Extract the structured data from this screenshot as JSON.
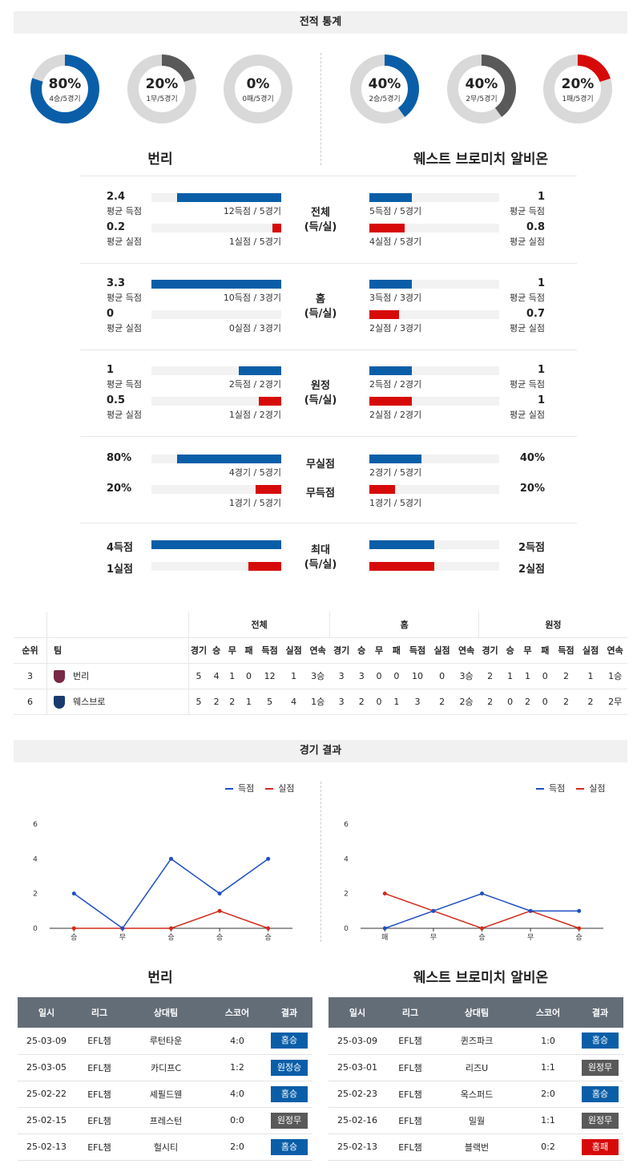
{
  "stats_header": "전적 통계",
  "colors": {
    "blue": "#0a5ea8",
    "red": "#d70a0a",
    "gray": "#595959"
  },
  "donuts": [
    {
      "pct": "80%",
      "sub": "4승/5경기",
      "value": 0.8,
      "color": "#0a5ea8"
    },
    {
      "pct": "20%",
      "sub": "1무/5경기",
      "value": 0.2,
      "color": "#595959"
    },
    {
      "pct": "0%",
      "sub": "0패/5경기",
      "value": 0.0,
      "color": "#d70a0a"
    },
    {
      "pct": "40%",
      "sub": "2승/5경기",
      "value": 0.4,
      "color": "#0a5ea8"
    },
    {
      "pct": "40%",
      "sub": "2무/5경기",
      "value": 0.4,
      "color": "#595959"
    },
    {
      "pct": "20%",
      "sub": "1패/5경기",
      "value": 0.2,
      "color": "#d70a0a"
    }
  ],
  "home_team": "번리",
  "away_team": "웨스트 브로미치 알비온",
  "stat_groups": [
    {
      "cat": "전체\n(득/실)",
      "left": [
        {
          "num": "2.4",
          "lbl": "평균 득점",
          "cap": "12득점 / 5경기",
          "frac": 0.8,
          "color": "blue"
        },
        {
          "num": "0.2",
          "lbl": "평균 실점",
          "cap": "1실점 / 5경기",
          "frac": 0.07,
          "color": "red"
        }
      ],
      "right": [
        {
          "num": "1",
          "lbl": "평균 득점",
          "cap": "5득점 / 5경기",
          "frac": 0.33,
          "color": "blue"
        },
        {
          "num": "0.8",
          "lbl": "평균 실점",
          "cap": "4실점 / 5경기",
          "frac": 0.27,
          "color": "red"
        }
      ]
    },
    {
      "cat": "홈\n(득/실)",
      "left": [
        {
          "num": "3.3",
          "lbl": "평균 득점",
          "cap": "10득점 / 3경기",
          "frac": 1.0,
          "color": "blue"
        },
        {
          "num": "0",
          "lbl": "평균 실점",
          "cap": "0실점 / 3경기",
          "frac": 0.0,
          "color": "red"
        }
      ],
      "right": [
        {
          "num": "1",
          "lbl": "평균 득점",
          "cap": "3득점 / 3경기",
          "frac": 0.33,
          "color": "blue"
        },
        {
          "num": "0.7",
          "lbl": "평균 실점",
          "cap": "2실점 / 3경기",
          "frac": 0.23,
          "color": "red"
        }
      ]
    },
    {
      "cat": "원정\n(득/실)",
      "left": [
        {
          "num": "1",
          "lbl": "평균 득점",
          "cap": "2득점 / 2경기",
          "frac": 0.33,
          "color": "blue"
        },
        {
          "num": "0.5",
          "lbl": "평균 실점",
          "cap": "1실점 / 2경기",
          "frac": 0.17,
          "color": "red"
        }
      ],
      "right": [
        {
          "num": "1",
          "lbl": "평균 득점",
          "cap": "2득점 / 2경기",
          "frac": 0.33,
          "color": "blue"
        },
        {
          "num": "1",
          "lbl": "평균 실점",
          "cap": "2실점 / 2경기",
          "frac": 0.33,
          "color": "red"
        }
      ]
    }
  ],
  "clean": {
    "cat1": "무실점",
    "cat2": "무득점",
    "left": [
      {
        "num": "80%",
        "cap": "4경기 / 5경기",
        "frac": 0.8,
        "color": "blue"
      },
      {
        "num": "20%",
        "cap": "1경기 / 5경기",
        "frac": 0.2,
        "color": "red"
      }
    ],
    "right": [
      {
        "num": "40%",
        "cap": "2경기 / 5경기",
        "frac": 0.4,
        "color": "blue"
      },
      {
        "num": "20%",
        "cap": "1경기 / 5경기",
        "frac": 0.2,
        "color": "red"
      }
    ]
  },
  "max": {
    "cat": "최대\n(득/실)",
    "left": [
      {
        "num": "4득점",
        "frac": 1.0,
        "color": "blue"
      },
      {
        "num": "1실점",
        "frac": 0.25,
        "color": "red"
      }
    ],
    "right": [
      {
        "num": "2득점",
        "frac": 0.5,
        "color": "blue"
      },
      {
        "num": "2실점",
        "frac": 0.5,
        "color": "red"
      }
    ]
  },
  "standings": {
    "group_headers": [
      "전체",
      "홈",
      "원정"
    ],
    "cols": [
      "순위",
      "팀",
      "경기",
      "승",
      "무",
      "패",
      "득점",
      "실점",
      "연속",
      "경기",
      "승",
      "무",
      "패",
      "득점",
      "실점",
      "연속",
      "경기",
      "승",
      "무",
      "패",
      "득점",
      "실점",
      "연속"
    ],
    "rows": [
      {
        "rank": "3",
        "team": "번리",
        "cells": [
          "5",
          "4",
          "1",
          "0",
          "12",
          "1",
          "3승",
          "3",
          "3",
          "0",
          "0",
          "10",
          "0",
          "3승",
          "2",
          "1",
          "1",
          "0",
          "2",
          "1",
          "1승"
        ]
      },
      {
        "rank": "6",
        "team": "웨스브로",
        "cells": [
          "5",
          "2",
          "2",
          "1",
          "5",
          "4",
          "1승",
          "3",
          "2",
          "0",
          "1",
          "3",
          "2",
          "2승",
          "2",
          "0",
          "2",
          "0",
          "2",
          "2",
          "2무"
        ]
      }
    ]
  },
  "results_header": "경기 결과",
  "legend": {
    "scored": "득점",
    "conceded": "실점"
  },
  "chart_data": [
    {
      "type": "line",
      "categories": [
        "승",
        "무",
        "승",
        "승",
        "승"
      ],
      "ylim": [
        0,
        6
      ],
      "yticks": [
        0,
        2,
        4,
        6
      ],
      "series": [
        {
          "name": "득점",
          "values": [
            2,
            0,
            4,
            2,
            4
          ],
          "color": "#1f4fc2"
        },
        {
          "name": "실점",
          "values": [
            0,
            0,
            0,
            1,
            0
          ],
          "color": "#d42a1c"
        }
      ]
    },
    {
      "type": "line",
      "categories": [
        "패",
        "무",
        "승",
        "무",
        "승"
      ],
      "ylim": [
        0,
        6
      ],
      "yticks": [
        0,
        2,
        4,
        6
      ],
      "series": [
        {
          "name": "득점",
          "values": [
            0,
            1,
            2,
            1,
            1
          ],
          "color": "#1f4fc2"
        },
        {
          "name": "실점",
          "values": [
            2,
            1,
            0,
            1,
            0
          ],
          "color": "#d42a1c"
        }
      ]
    }
  ],
  "results_cols": [
    "일시",
    "리그",
    "상대팀",
    "스코어",
    "결과"
  ],
  "home_results": [
    {
      "date": "25-03-09",
      "league": "EFL챔",
      "opp": "루턴타운",
      "score": "4:0",
      "result": "홈승",
      "kind": "win"
    },
    {
      "date": "25-03-05",
      "league": "EFL챔",
      "opp": "카디프C",
      "score": "1:2",
      "result": "원정승",
      "kind": "win"
    },
    {
      "date": "25-02-22",
      "league": "EFL챔",
      "opp": "셰필드웬",
      "score": "4:0",
      "result": "홈승",
      "kind": "win"
    },
    {
      "date": "25-02-15",
      "league": "EFL챔",
      "opp": "프레스턴",
      "score": "0:0",
      "result": "원정무",
      "kind": "draw"
    },
    {
      "date": "25-02-13",
      "league": "EFL챔",
      "opp": "헐시티",
      "score": "2:0",
      "result": "홈승",
      "kind": "win"
    }
  ],
  "away_results": [
    {
      "date": "25-03-09",
      "league": "EFL챔",
      "opp": "퀸즈파크",
      "score": "1:0",
      "result": "홈승",
      "kind": "win"
    },
    {
      "date": "25-03-01",
      "league": "EFL챔",
      "opp": "리즈U",
      "score": "1:1",
      "result": "원정무",
      "kind": "draw"
    },
    {
      "date": "25-02-23",
      "league": "EFL챔",
      "opp": "옥스퍼드",
      "score": "2:0",
      "result": "홈승",
      "kind": "win"
    },
    {
      "date": "25-02-16",
      "league": "EFL챔",
      "opp": "밀월",
      "score": "1:1",
      "result": "원정무",
      "kind": "draw"
    },
    {
      "date": "25-02-13",
      "league": "EFL챔",
      "opp": "블랙번",
      "score": "0:2",
      "result": "홈패",
      "kind": "loss"
    }
  ]
}
